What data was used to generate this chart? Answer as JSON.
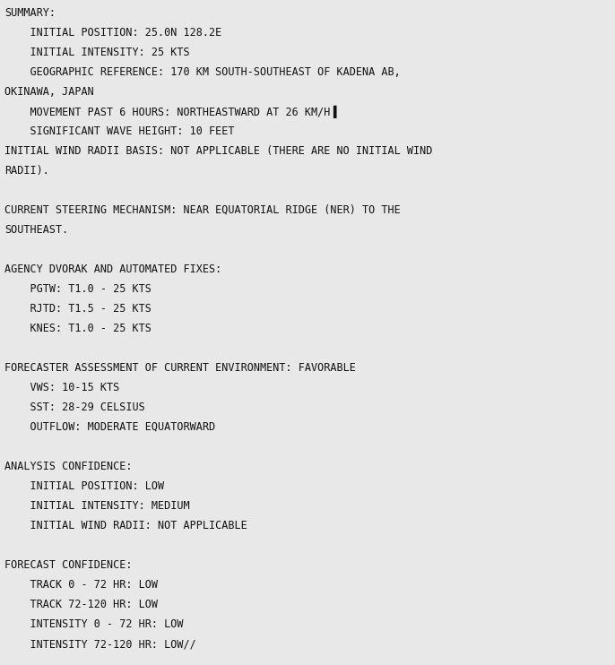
{
  "background_color": "#e8e8e8",
  "text_color": "#111111",
  "font_family": "DejaVu Sans Mono",
  "font_size": 8.5,
  "figwidth": 6.86,
  "figheight": 7.42,
  "dpi": 100,
  "lines": [
    "SUMMARY:",
    "    INITIAL POSITION: 25.0N 128.2E",
    "    INITIAL INTENSITY: 25 KTS",
    "    GEOGRAPHIC REFERENCE: 170 KM SOUTH-SOUTHEAST OF KADENA AB,",
    "OKINAWA, JAPAN",
    "    MOVEMENT PAST 6 HOURS: NORTHEASTWARD AT 26 KM/H▐",
    "    SIGNIFICANT WAVE HEIGHT: 10 FEET",
    "INITIAL WIND RADII BASIS: NOT APPLICABLE (THERE ARE NO INITIAL WIND",
    "RADII).",
    "",
    "CURRENT STEERING MECHANISM: NEAR EQUATORIAL RIDGE (NER) TO THE",
    "SOUTHEAST.",
    "",
    "AGENCY DVORAK AND AUTOMATED FIXES:",
    "    PGTW: T1.0 - 25 KTS",
    "    RJTD: T1.5 - 25 KTS",
    "    KNES: T1.0 - 25 KTS",
    "",
    "FORECASTER ASSESSMENT OF CURRENT ENVIRONMENT: FAVORABLE",
    "    VWS: 10-15 KTS",
    "    SST: 28-29 CELSIUS",
    "    OUTFLOW: MODERATE EQUATORWARD",
    "",
    "ANALYSIS CONFIDENCE:",
    "    INITIAL POSITION: LOW",
    "    INITIAL INTENSITY: MEDIUM",
    "    INITIAL WIND RADII: NOT APPLICABLE",
    "",
    "FORECAST CONFIDENCE:",
    "    TRACK 0 - 72 HR: LOW",
    "    TRACK 72-120 HR: LOW",
    "    INTENSITY 0 - 72 HR: LOW",
    "    INTENSITY 72-120 HR: LOW//"
  ]
}
